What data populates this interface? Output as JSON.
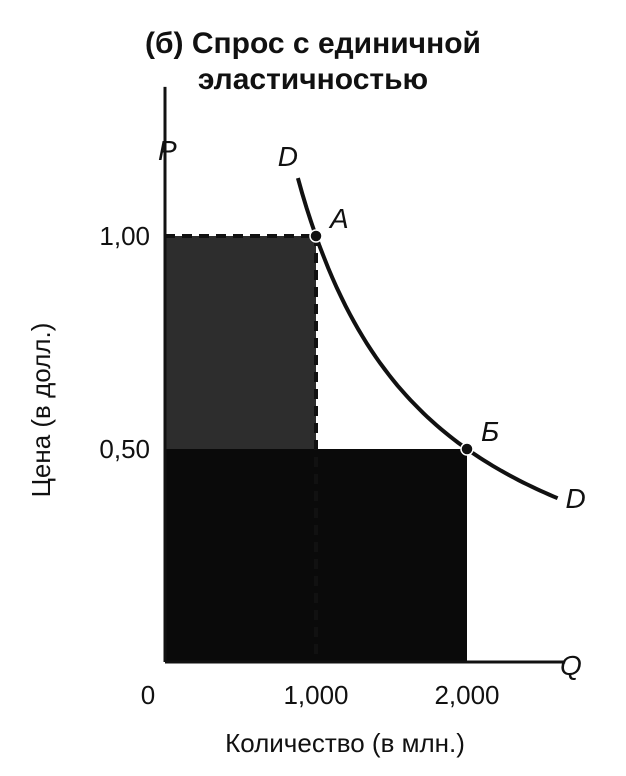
{
  "title": {
    "line1": "(б) Спрос с единичной",
    "line2": "эластичностью"
  },
  "chart_data": {
    "type": "line",
    "title": "(б) Спрос с единичной эластичностью",
    "xlabel": "Количество (в млн.)",
    "ylabel": "Цена (в долл.)",
    "x_axis_letter": "Q",
    "y_axis_letter": "P",
    "origin_label": "0",
    "x_ticks": [
      {
        "value": 1000,
        "label": "1,000"
      },
      {
        "value": 2000,
        "label": "2,000"
      }
    ],
    "y_ticks": [
      {
        "value": 0.5,
        "label": "0,50"
      },
      {
        "value": 1.0,
        "label": "1,00"
      }
    ],
    "xlim": [
      0,
      2650
    ],
    "ylim": [
      0,
      1.35
    ],
    "grid": false,
    "series": [
      {
        "name": "D",
        "curve": "P = 1000 / Q",
        "x": [
          880,
          1000,
          1200,
          1500,
          2000,
          2600
        ],
        "y": [
          1.136,
          1.0,
          0.833,
          0.667,
          0.5,
          0.385
        ]
      }
    ],
    "curve_labels": {
      "start": "D",
      "end": "D"
    },
    "points": [
      {
        "label": "А",
        "x": 1000,
        "y": 1.0
      },
      {
        "label": "Б",
        "x": 2000,
        "y": 0.5
      }
    ],
    "revenue_rectangles": [
      {
        "x": [
          0,
          1000
        ],
        "y": [
          0,
          1.0
        ],
        "fill": "dark-gray"
      },
      {
        "x": [
          0,
          2000
        ],
        "y": [
          0,
          0.5
        ],
        "fill": "black"
      }
    ]
  },
  "colors": {
    "background": "#ffffff",
    "ink": "#111111",
    "rect_price_high": "#2d2d2d",
    "rect_price_low": "#0a0a0a"
  }
}
